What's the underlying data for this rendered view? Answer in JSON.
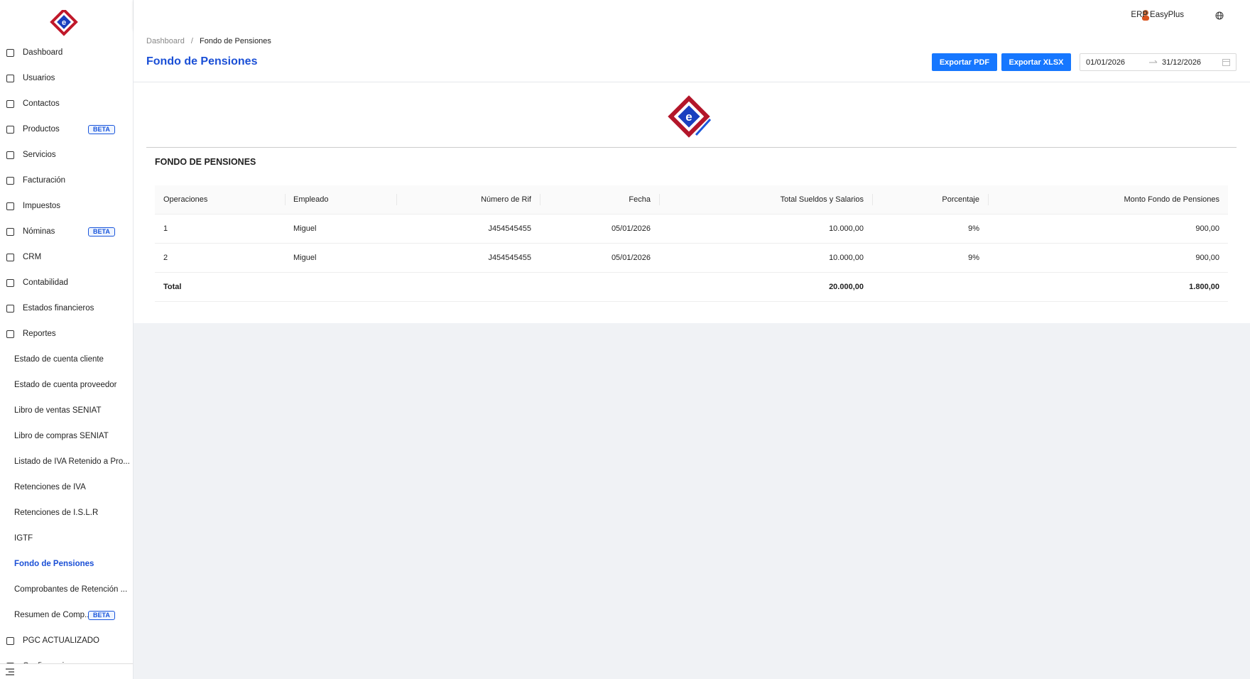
{
  "sidebar": {
    "items": [
      {
        "label": "Dashboard",
        "level": 1
      },
      {
        "label": "Usuarios",
        "level": 1
      },
      {
        "label": "Contactos",
        "level": 1
      },
      {
        "label": "Productos",
        "level": 1,
        "badge": "BETA"
      },
      {
        "label": "Servicios",
        "level": 1
      },
      {
        "label": "Facturación",
        "level": 1
      },
      {
        "label": "Impuestos",
        "level": 1
      },
      {
        "label": "Nóminas",
        "level": 1,
        "badge": "BETA"
      },
      {
        "label": "CRM",
        "level": 1
      },
      {
        "label": "Contabilidad",
        "level": 1
      },
      {
        "label": "Estados financieros",
        "level": 1
      },
      {
        "label": "Reportes",
        "level": 1
      },
      {
        "label": "Estado de cuenta cliente",
        "level": 2
      },
      {
        "label": "Estado de cuenta proveedor",
        "level": 2
      },
      {
        "label": "Libro de ventas SENIAT",
        "level": 2
      },
      {
        "label": "Libro de compras SENIAT",
        "level": 2
      },
      {
        "label": "Listado de IVA Retenido a Pro...",
        "level": 2
      },
      {
        "label": "Retenciones de IVA",
        "level": 2
      },
      {
        "label": "Retenciones de I.S.L.R",
        "level": 2
      },
      {
        "label": "IGTF",
        "level": 2
      },
      {
        "label": "Fondo de Pensiones",
        "level": 2,
        "active": true
      },
      {
        "label": "Comprobantes de Retención ...",
        "level": 2
      },
      {
        "label": "Resumen de Comp...",
        "level": 2,
        "badge": "BETA"
      },
      {
        "label": "PGC ACTUALIZADO",
        "level": 1
      },
      {
        "label": "Configuraciones",
        "level": 1
      }
    ]
  },
  "header": {
    "user": "ERP EasyPlus"
  },
  "page": {
    "breadcrumb": [
      "Dashboard",
      "Fondo de Pensiones"
    ],
    "title": "Fondo de Pensiones",
    "buttons": [
      "Exportar PDF",
      "Exportar XLSX"
    ],
    "date_from": "01/01/2026",
    "date_to": "31/12/2026"
  },
  "report": {
    "title": "FONDO DE PENSIONES",
    "table": {
      "columns": [
        "Operaciones",
        "Empleado",
        "Número de Rif",
        "Fecha",
        "Total Sueldos y Salarios",
        "Porcentaje",
        "Monto Fondo de Pensiones"
      ],
      "rows": [
        [
          "1",
          "Miguel",
          "J454545455",
          "05/01/2026",
          "10.000,00",
          "9%",
          "900,00"
        ],
        [
          "2",
          "Miguel",
          "J454545455",
          "05/01/2026",
          "10.000,00",
          "9%",
          "900,00"
        ]
      ],
      "total": {
        "label": "Total",
        "total_sueldos": "20.000,00",
        "total_monto": "1.800,00"
      }
    }
  }
}
